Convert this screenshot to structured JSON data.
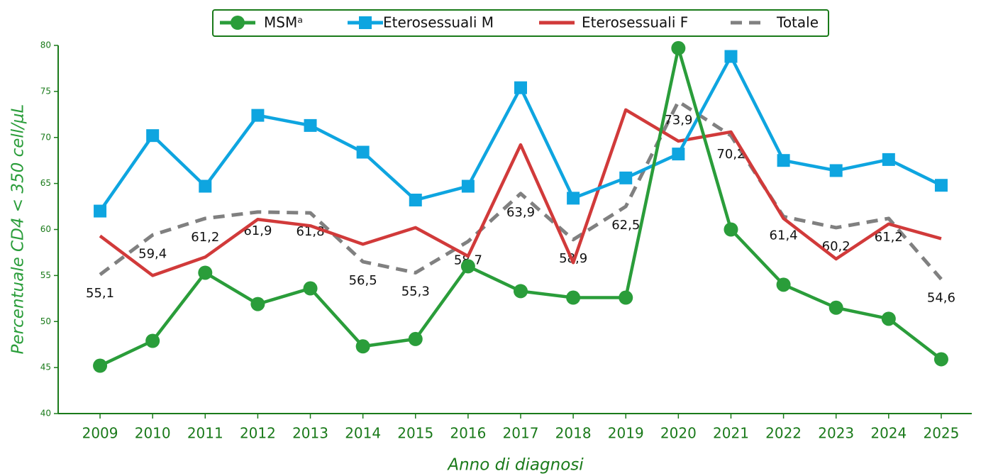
{
  "chart_data": {
    "type": "line",
    "categories": [
      "2009",
      "2010",
      "2011",
      "2012",
      "2013",
      "2014",
      "2015",
      "2016",
      "2017",
      "2018",
      "2019",
      "2020",
      "2021",
      "2022",
      "2023",
      "2024",
      "2025"
    ],
    "x_label": "Anno di diagnosi",
    "y_label": "Percentuale CD4 < 350 cell/μL",
    "ylim": [
      40,
      80
    ],
    "yticks": [
      40,
      45,
      50,
      55,
      60,
      65,
      70,
      75,
      80
    ],
    "grid": false,
    "legend": "top",
    "series": [
      {
        "name": "MSMᵃ",
        "color": "#2a9d3a",
        "marker": "circle",
        "values": [
          45.2,
          47.9,
          55.3,
          51.9,
          53.6,
          47.3,
          48.1,
          56.0,
          53.3,
          52.6,
          52.6,
          79.7,
          60.0,
          54.0,
          51.5,
          50.3,
          45.9
        ]
      },
      {
        "name": "Eterosessuali M",
        "color": "#0ea5e0",
        "marker": "square",
        "values": [
          62.0,
          70.2,
          64.7,
          72.4,
          71.3,
          68.4,
          63.2,
          64.7,
          75.4,
          63.4,
          65.6,
          68.2,
          78.8,
          67.5,
          66.4,
          67.6,
          64.8
        ]
      },
      {
        "name": "Eterosessuali F",
        "color": "#d13a3a",
        "values": [
          59.3,
          55.0,
          57.0,
          61.1,
          60.4,
          58.4,
          60.2,
          57.1,
          69.2,
          56.4,
          73.0,
          69.6,
          70.6,
          61.2,
          56.8,
          60.6,
          59.0
        ]
      },
      {
        "name": "Totale",
        "color": "#808080",
        "dash": true,
        "values": [
          55.1,
          59.4,
          61.2,
          61.9,
          61.8,
          56.5,
          55.3,
          58.7,
          63.9,
          58.9,
          62.5,
          73.9,
          70.2,
          61.4,
          60.2,
          61.2,
          54.6
        ],
        "value_labels": [
          "55,1",
          "59,4",
          "61,2",
          "61,9",
          "61,8",
          "56,5",
          "55,3",
          "58,7",
          "63,9",
          "58,9",
          "62,5",
          "73,9",
          "70,2",
          "61,4",
          "60,2",
          "61,2",
          "54,6"
        ]
      }
    ]
  }
}
